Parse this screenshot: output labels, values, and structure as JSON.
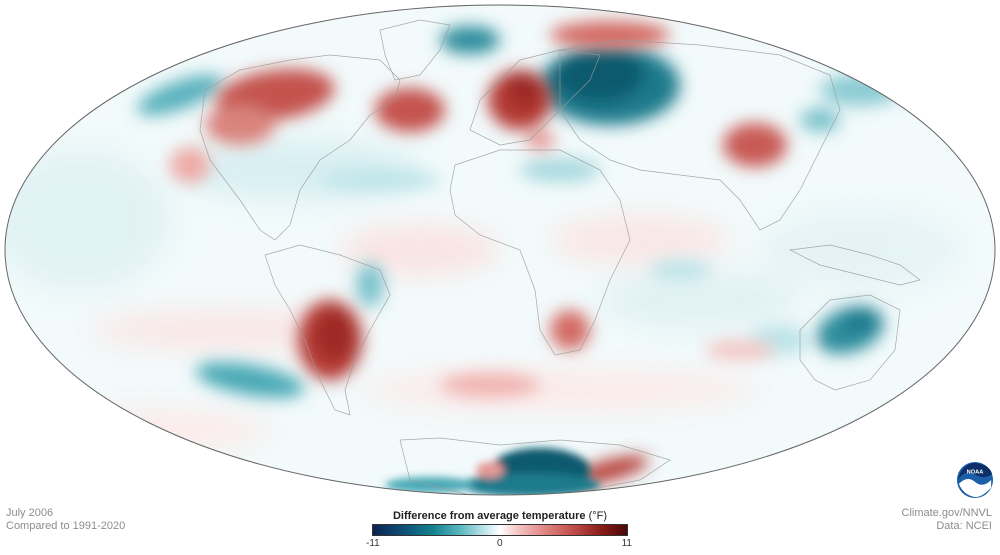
{
  "map": {
    "date": "July 2006",
    "baseline": "Compared to 1991-2020",
    "credit_site": "Climate.gov/NNVL",
    "credit_data": "Data: NCEI",
    "logo_text": "NOAA",
    "legend": {
      "title": "Difference from average temperature",
      "unit": "(°F)",
      "min_label": "-11",
      "mid_label": "0",
      "max_label": "11",
      "min_value": -11,
      "max_value": 11
    },
    "colors": {
      "strong_cold": "#0e5a6e",
      "cold": "#4aa9b5",
      "cool": "#bfe6ea",
      "neutral": "#ffffff",
      "warm": "#f3c6c4",
      "hot": "#d36a63",
      "strong_hot": "#a8322c"
    }
  }
}
